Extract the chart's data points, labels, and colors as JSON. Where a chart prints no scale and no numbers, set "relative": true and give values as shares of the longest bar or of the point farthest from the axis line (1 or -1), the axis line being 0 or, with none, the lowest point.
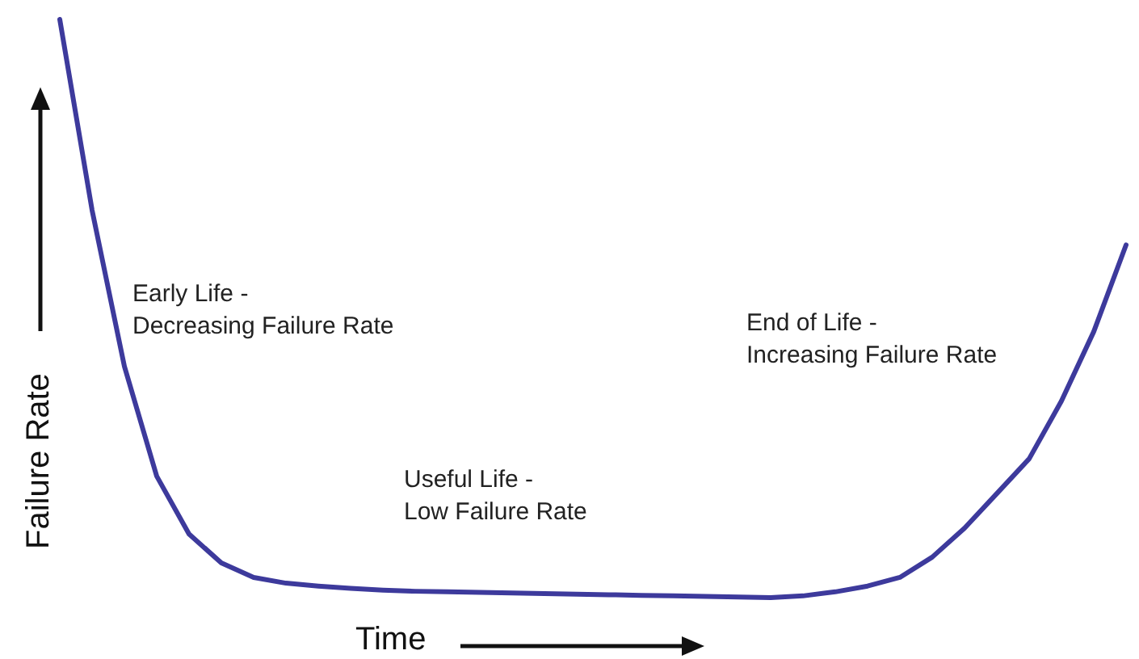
{
  "chart_data": {
    "type": "line",
    "relative": true,
    "xlabel": "Time",
    "ylabel": "Failure Rate",
    "annotations": [
      "Early Life -\nDecreasing Failure Rate",
      "Useful Life -\nLow Failure Rate",
      "End of Life -\nIncreasing Failure Rate"
    ],
    "categories": [
      null,
      null,
      null,
      null,
      null,
      null,
      null,
      null,
      null,
      null,
      null,
      null,
      null,
      null,
      null,
      null,
      null,
      null,
      null,
      null,
      null,
      null,
      null,
      null,
      null,
      null,
      null,
      null,
      null,
      null,
      null,
      null,
      null,
      null
    ],
    "series": [
      {
        "color": "#3d3a9c",
        "values": [
          1.0,
          0.67,
          0.4,
          0.21,
          0.11,
          0.06,
          0.035,
          0.025,
          0.02,
          0.016,
          0.013,
          0.011,
          0.01,
          0.009,
          0.008,
          0.007,
          0.006,
          0.005,
          0.004,
          0.003,
          0.002,
          0.001,
          0,
          0.003,
          0.01,
          0.02,
          0.035,
          0.07,
          0.12,
          0.18,
          0.24,
          0.34,
          0.46,
          0.61
        ]
      }
    ],
    "marker": "none",
    "line_style": "solid"
  }
}
